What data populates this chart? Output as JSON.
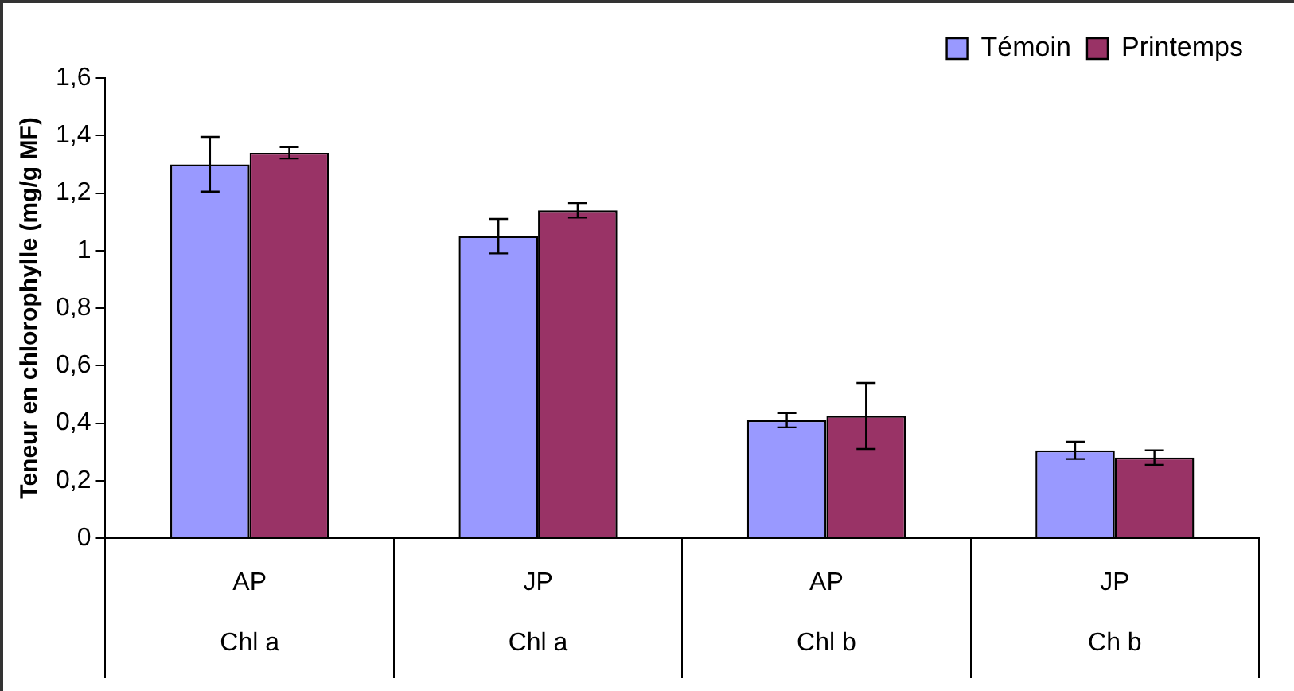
{
  "chart_data": {
    "type": "bar",
    "ylabel": "Teneur en chlorophylle (mg/g MF)",
    "categories": [
      "AP\nChl a",
      "JP\nChl a",
      "AP\nChl b",
      "JP\nCh b"
    ],
    "series": [
      {
        "name": "Témoin",
        "color": "#9999ff",
        "values": [
          1.3,
          1.05,
          0.41,
          0.305
        ],
        "errors": [
          0.095,
          0.06,
          0.025,
          0.03
        ]
      },
      {
        "name": "Printemps",
        "color": "#993366",
        "values": [
          1.34,
          1.14,
          0.425,
          0.28
        ],
        "errors": [
          0.02,
          0.025,
          0.115,
          0.025
        ]
      }
    ],
    "ylim": [
      0,
      1.6
    ],
    "yticks": [
      0,
      {
        "value": 0.2,
        "label": "0,2"
      },
      {
        "value": 0.4,
        "label": "0,4"
      },
      {
        "value": 0.6,
        "label": "0,6"
      },
      {
        "value": 0.8,
        "label": "0,8"
      },
      1,
      {
        "value": 1.2,
        "label": "1,2"
      },
      {
        "value": 1.4,
        "label": "1,4"
      },
      {
        "value": 1.6,
        "label": "1,6"
      }
    ],
    "grid": false,
    "legend": "top right"
  }
}
